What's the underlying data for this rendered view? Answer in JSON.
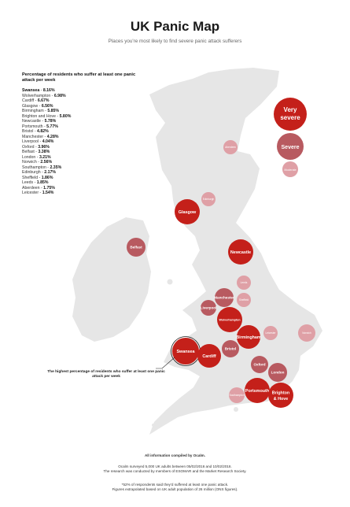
{
  "header": {
    "title": "UK Panic Map",
    "subtitle": "Places you're most likely to find severe panic attack sufferers"
  },
  "legend": {
    "heading": "Percentage of residents who suffer at least one panic attack per week",
    "rankings": [
      {
        "city": "Swansea",
        "value": "8.16%"
      },
      {
        "city": "Wolverhampton",
        "value": "6.98%"
      },
      {
        "city": "Cardiff",
        "value": "6.67%"
      },
      {
        "city": "Glasgow",
        "value": "6.56%"
      },
      {
        "city": "Birmingham",
        "value": "5.85%"
      },
      {
        "city": "Brighton and Hove",
        "value": "5.80%"
      },
      {
        "city": "Newcastle",
        "value": "5.78%"
      },
      {
        "city": "Portsmouth",
        "value": "5.77%"
      },
      {
        "city": "Bristol",
        "value": "4.82%"
      },
      {
        "city": "Manchester",
        "value": "4.28%"
      },
      {
        "city": "Liverpool",
        "value": "4.04%"
      },
      {
        "city": "Oxford",
        "value": "3.96%"
      },
      {
        "city": "Belfast",
        "value": "3.38%"
      },
      {
        "city": "London",
        "value": "3.21%"
      },
      {
        "city": "Norwich",
        "value": "2.56%"
      },
      {
        "city": "Southampton",
        "value": "2.35%"
      },
      {
        "city": "Edinburgh",
        "value": "2.17%"
      },
      {
        "city": "Sheffield",
        "value": "1.86%"
      },
      {
        "city": "Leeds",
        "value": "1.85%"
      },
      {
        "city": "Aberdeen",
        "value": "1.75%"
      },
      {
        "city": "Leicester",
        "value": "1.54%"
      }
    ]
  },
  "severity_scale": [
    {
      "label": "Very severe",
      "color": "#c4201a"
    },
    {
      "label": "Severe",
      "color": "#b85a60"
    },
    {
      "label": "Moderate",
      "color": "#dfa0a6"
    }
  ],
  "markers": [
    {
      "name": "Aberdeen",
      "severity": "Moderate",
      "labeled": true
    },
    {
      "name": "Edinburgh",
      "severity": "Moderate",
      "labeled": true
    },
    {
      "name": "Glasgow",
      "severity": "Very severe",
      "labeled": true
    },
    {
      "name": "Belfast",
      "severity": "Severe",
      "labeled": true
    },
    {
      "name": "Newcastle",
      "severity": "Very severe",
      "labeled": true
    },
    {
      "name": "Leeds",
      "severity": "Moderate",
      "labeled": true
    },
    {
      "name": "Sheffield",
      "severity": "Moderate",
      "labeled": true
    },
    {
      "name": "Manchester",
      "severity": "Severe",
      "labeled": true
    },
    {
      "name": "Liverpool",
      "severity": "Severe",
      "labeled": true
    },
    {
      "name": "Wolverhampton",
      "severity": "Very severe",
      "labeled": true
    },
    {
      "name": "Birmingham",
      "severity": "Very severe",
      "labeled": true
    },
    {
      "name": "Leicester",
      "severity": "Moderate",
      "labeled": true
    },
    {
      "name": "Norwich",
      "severity": "Moderate",
      "labeled": true
    },
    {
      "name": "Swansea",
      "severity": "Very severe",
      "labeled": true
    },
    {
      "name": "Cardiff",
      "severity": "Very severe",
      "labeled": true
    },
    {
      "name": "Bristol",
      "severity": "Severe",
      "labeled": true
    },
    {
      "name": "Oxford",
      "severity": "Severe",
      "labeled": true
    },
    {
      "name": "London",
      "severity": "Severe",
      "labeled": true
    },
    {
      "name": "Southampton",
      "severity": "Moderate",
      "labeled": true
    },
    {
      "name": "Portsmouth",
      "severity": "Very severe",
      "labeled": true
    },
    {
      "name": "Brighton & Hove",
      "severity": "Very severe",
      "labeled": true
    }
  ],
  "callout": "The highest percentage of residents who suffer at least one panic attack per week",
  "footer": {
    "credit": "All information compiled by Ocalm.",
    "line1": "Ocalm surveyed 5,000 UK adults between 05/02/2016 and 10/02/2016.",
    "line2": "The research was conducted by members of ESOMAR and the Market Research Society.",
    "line3": "*52% of respondents said they'd suffered at least one panic attack.",
    "line4": "Figures extrapolated based on UK adult population of 26 million (ONS figures)."
  },
  "map_colors": {
    "land": "#e6e6e6"
  }
}
